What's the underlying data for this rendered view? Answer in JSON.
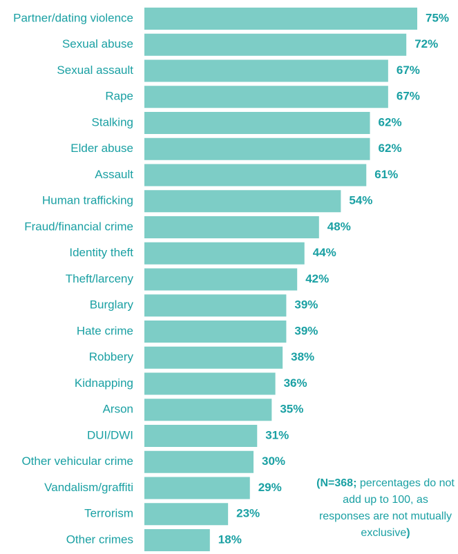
{
  "chart_data": {
    "type": "bar",
    "orientation": "horizontal",
    "categories": [
      "Partner/dating violence",
      "Sexual abuse",
      "Sexual assault",
      "Rape",
      "Stalking",
      "Elder abuse",
      "Assault",
      "Human trafficking",
      "Fraud/financial crime",
      "Identity theft",
      "Theft/larceny",
      "Burglary",
      "Hate crime",
      "Robbery",
      "Kidnapping",
      "Arson",
      "DUI/DWI",
      "Other vehicular crime",
      "Vandalism/graffiti",
      "Terrorism",
      "Other crimes"
    ],
    "values": [
      75,
      72,
      67,
      67,
      62,
      62,
      61,
      54,
      48,
      44,
      42,
      39,
      39,
      38,
      36,
      35,
      31,
      30,
      29,
      23,
      18
    ],
    "value_labels": [
      "75%",
      "72%",
      "67%",
      "67%",
      "62%",
      "62%",
      "61%",
      "54%",
      "48%",
      "44%",
      "42%",
      "39%",
      "39%",
      "38%",
      "36%",
      "35%",
      "31%",
      "30%",
      "29%",
      "23%",
      "18%"
    ],
    "xlim": [
      0,
      75
    ],
    "grid": false,
    "colors": {
      "bar": "#7dcdc6",
      "text": "#1aa0a3"
    }
  },
  "note": {
    "n_text": "(N=368;",
    "rest_text": " percentages do not add up to 100, as responses are not mutually exclusive",
    "close_paren": ")"
  }
}
